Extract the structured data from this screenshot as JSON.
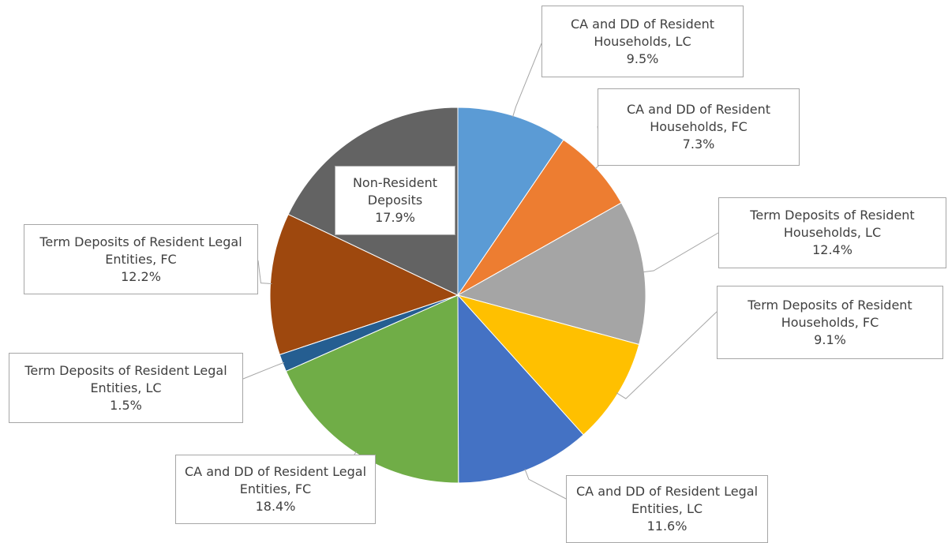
{
  "chart_data": {
    "type": "pie",
    "categories": [
      "CA and DD of Resident Households, LC",
      "CA and DD of Resident Households, FC",
      "Term Deposits of Resident Households, LC",
      "Term Deposits of Resident Households, FC",
      "CA and DD of Resident Legal Entities, LC",
      "CA and DD of Resident Legal Entities, FC",
      "Term Deposits of Resident Legal Entities, LC",
      "Term Deposits of Resident Legal Entities, FC",
      "Non-Resident Deposits"
    ],
    "values": [
      9.5,
      7.3,
      12.4,
      9.1,
      11.6,
      18.4,
      1.5,
      12.2,
      17.9
    ],
    "value_labels": [
      "9.5%",
      "7.3%",
      "12.4%",
      "9.1%",
      "11.6%",
      "18.4%",
      "1.5%",
      "12.2%",
      "17.9%"
    ],
    "colors": [
      "#5b9bd5",
      "#ed7d31",
      "#a5a5a5",
      "#ffc000",
      "#4472c4",
      "#70ad47",
      "#255e91",
      "#9e480e",
      "#636363"
    ]
  }
}
